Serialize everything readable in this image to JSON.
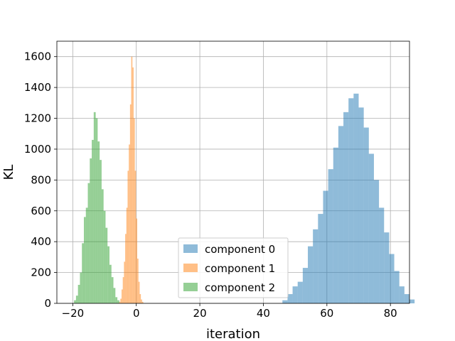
{
  "chart_data": {
    "type": "histogram",
    "title": "",
    "xlabel": "iteration",
    "ylabel": "KL",
    "xlim": [
      -25,
      86
    ],
    "ylim": [
      0,
      1700
    ],
    "xticks": [
      -20,
      0,
      20,
      40,
      60,
      80
    ],
    "yticks": [
      0,
      200,
      400,
      600,
      800,
      1000,
      1200,
      1400,
      1600
    ],
    "grid": true,
    "legend_position": "lower center",
    "bin_width": 1.6,
    "series": [
      {
        "name": "component 0",
        "color": "#1f77b4",
        "alpha": 0.5,
        "bin_start": 46.0,
        "counts": [
          20,
          60,
          110,
          140,
          230,
          370,
          480,
          580,
          730,
          870,
          1010,
          1150,
          1240,
          1330,
          1360,
          1270,
          1140,
          970,
          800,
          620,
          460,
          320,
          210,
          110,
          60,
          25
        ]
      },
      {
        "name": "component 1",
        "color": "#ff7f0e",
        "alpha": 0.5,
        "bin_start": -5.4,
        "counts": [
          10,
          30,
          90,
          170,
          270,
          450,
          620,
          860,
          1030,
          1290,
          1600,
          1530,
          1200,
          860,
          550,
          290,
          140,
          60,
          25,
          10
        ],
        "bin_width_override": 0.38
      },
      {
        "name": "component 2",
        "color": "#2ca02c",
        "alpha": 0.5,
        "bin_start": -19.6,
        "counts": [
          20,
          50,
          120,
          200,
          390,
          560,
          620,
          780,
          940,
          1060,
          1240,
          1200,
          1050,
          930,
          740,
          600,
          490,
          370,
          250,
          170,
          100,
          40,
          20
        ],
        "bin_width_override": 0.62
      }
    ]
  }
}
